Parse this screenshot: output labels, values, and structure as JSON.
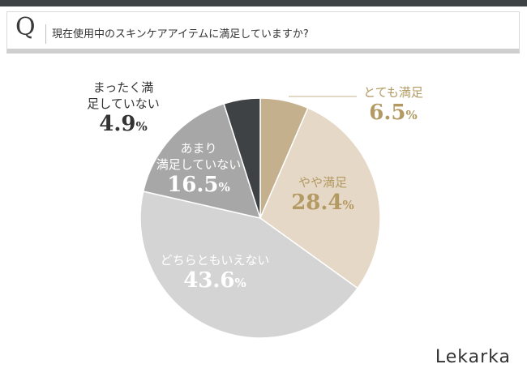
{
  "header": {
    "q_letter": "Q",
    "question": "現在使用中のスキンケアアイテムに満足していますか?"
  },
  "brand": "Lekarka",
  "chart_data": {
    "type": "pie",
    "title": "",
    "slices": [
      {
        "label": "とても満足",
        "value": 6.5,
        "display": "6.5",
        "color": "#c5b08e",
        "label_color": "#b39a63"
      },
      {
        "label": "やや満足",
        "value": 28.4,
        "display": "28.4",
        "color": "#e6d8c7",
        "label_color": "#b39a63"
      },
      {
        "label": "どちらともいえない",
        "value": 43.6,
        "display": "43.6",
        "color": "#d4d4d4",
        "label_color": "#ffffff"
      },
      {
        "label": "あまり満足していない",
        "value": 16.5,
        "display": "16.5",
        "color": "#a7a7a7",
        "label_color": "#ffffff"
      },
      {
        "label": "まったく満足していない",
        "value": 4.9,
        "display": "4.9",
        "color": "#3e4244",
        "label_color": "#333333"
      }
    ],
    "unit": "%",
    "start": "top",
    "direction": "clockwise",
    "legend": "none"
  }
}
